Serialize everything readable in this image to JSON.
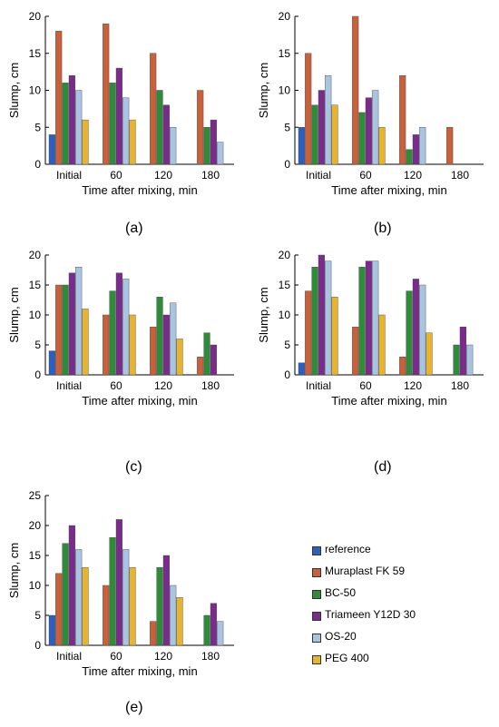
{
  "series_colors": [
    "#2b5fc0",
    "#c8603c",
    "#2e8b3a",
    "#7b2b8c",
    "#a8c4e0",
    "#e8b430"
  ],
  "legend": [
    {
      "name": "reference",
      "color": "#2b5fc0"
    },
    {
      "name": "Muraplast FK 59",
      "color": "#c8603c"
    },
    {
      "name": "BC-50",
      "color": "#2e8b3a"
    },
    {
      "name": "Triameen Y12D 30",
      "color": "#7b2b8c"
    },
    {
      "name": "OS-20",
      "color": "#a8c4e0"
    },
    {
      "name": "PEG 400",
      "color": "#e8b430"
    }
  ],
  "chart_data": [
    {
      "panel": "(a)",
      "type": "bar",
      "categories": [
        "Initial",
        "60",
        "120",
        "180"
      ],
      "xlabel": "Time after mixing, min",
      "ylabel": "Slump, cm",
      "ylim": [
        0,
        20
      ],
      "yticks": [
        0,
        5,
        10,
        15,
        20
      ],
      "series": [
        {
          "name": "reference",
          "values": [
            4,
            null,
            null,
            null
          ]
        },
        {
          "name": "Muraplast FK 59",
          "values": [
            18,
            19,
            15,
            10
          ]
        },
        {
          "name": "BC-50",
          "values": [
            11,
            11,
            10,
            5
          ]
        },
        {
          "name": "Triameen Y12D 30",
          "values": [
            12,
            13,
            8,
            6
          ]
        },
        {
          "name": "OS-20",
          "values": [
            10,
            9,
            5,
            3
          ]
        },
        {
          "name": "PEG 400",
          "values": [
            6,
            6,
            null,
            null
          ]
        }
      ]
    },
    {
      "panel": "(b)",
      "type": "bar",
      "categories": [
        "Initial",
        "60",
        "120",
        "180"
      ],
      "xlabel": "Time after mixing, min",
      "ylabel": "Slump, cm",
      "ylim": [
        0,
        20
      ],
      "yticks": [
        0,
        5,
        10,
        15,
        20
      ],
      "series": [
        {
          "name": "reference",
          "values": [
            5,
            null,
            null,
            null
          ]
        },
        {
          "name": "Muraplast FK 59",
          "values": [
            15,
            20,
            12,
            5
          ]
        },
        {
          "name": "BC-50",
          "values": [
            8,
            7,
            2,
            null
          ]
        },
        {
          "name": "Triameen Y12D 30",
          "values": [
            10,
            9,
            4,
            null
          ]
        },
        {
          "name": "OS-20",
          "values": [
            12,
            10,
            5,
            null
          ]
        },
        {
          "name": "PEG 400",
          "values": [
            8,
            5,
            null,
            null
          ]
        }
      ]
    },
    {
      "panel": "(c)",
      "type": "bar",
      "categories": [
        "Initial",
        "60",
        "120",
        "180"
      ],
      "xlabel": "Time after mixing, min",
      "ylabel": "Slump, cm",
      "ylim": [
        0,
        20
      ],
      "yticks": [
        0,
        5,
        10,
        15,
        20
      ],
      "series": [
        {
          "name": "reference",
          "values": [
            4,
            null,
            null,
            null
          ]
        },
        {
          "name": "Muraplast FK 59",
          "values": [
            15,
            10,
            8,
            3
          ]
        },
        {
          "name": "BC-50",
          "values": [
            15,
            14,
            13,
            7
          ]
        },
        {
          "name": "Triameen Y12D 30",
          "values": [
            17,
            17,
            10,
            5
          ]
        },
        {
          "name": "OS-20",
          "values": [
            18,
            16,
            12,
            null
          ]
        },
        {
          "name": "PEG 400",
          "values": [
            11,
            10,
            6,
            null
          ]
        }
      ]
    },
    {
      "panel": "(d)",
      "type": "bar",
      "categories": [
        "Initial",
        "60",
        "120",
        "180"
      ],
      "xlabel": "Time after mixing, min",
      "ylabel": "Slump, cm",
      "ylim": [
        0,
        20
      ],
      "yticks": [
        0,
        5,
        10,
        15,
        20
      ],
      "series": [
        {
          "name": "reference",
          "values": [
            2,
            null,
            null,
            null
          ]
        },
        {
          "name": "Muraplast FK 59",
          "values": [
            14,
            8,
            3,
            null
          ]
        },
        {
          "name": "BC-50",
          "values": [
            18,
            18,
            14,
            5
          ]
        },
        {
          "name": "Triameen Y12D 30",
          "values": [
            20,
            19,
            16,
            8
          ]
        },
        {
          "name": "OS-20",
          "values": [
            19,
            19,
            15,
            5
          ]
        },
        {
          "name": "PEG 400",
          "values": [
            13,
            10,
            7,
            null
          ]
        }
      ]
    },
    {
      "panel": "(e)",
      "type": "bar",
      "categories": [
        "Initial",
        "60",
        "120",
        "180"
      ],
      "xlabel": "Time after mixing, min",
      "ylabel": "Slump, cm",
      "ylim": [
        0,
        25
      ],
      "yticks": [
        0,
        5,
        10,
        15,
        20,
        25
      ],
      "series": [
        {
          "name": "reference",
          "values": [
            5,
            null,
            null,
            null
          ]
        },
        {
          "name": "Muraplast FK 59",
          "values": [
            12,
            10,
            4,
            null
          ]
        },
        {
          "name": "BC-50",
          "values": [
            17,
            18,
            13,
            5
          ]
        },
        {
          "name": "Triameen Y12D 30",
          "values": [
            20,
            21,
            15,
            7
          ]
        },
        {
          "name": "OS-20",
          "values": [
            16,
            16,
            10,
            4
          ]
        },
        {
          "name": "PEG 400",
          "values": [
            13,
            13,
            8,
            null
          ]
        }
      ]
    }
  ]
}
